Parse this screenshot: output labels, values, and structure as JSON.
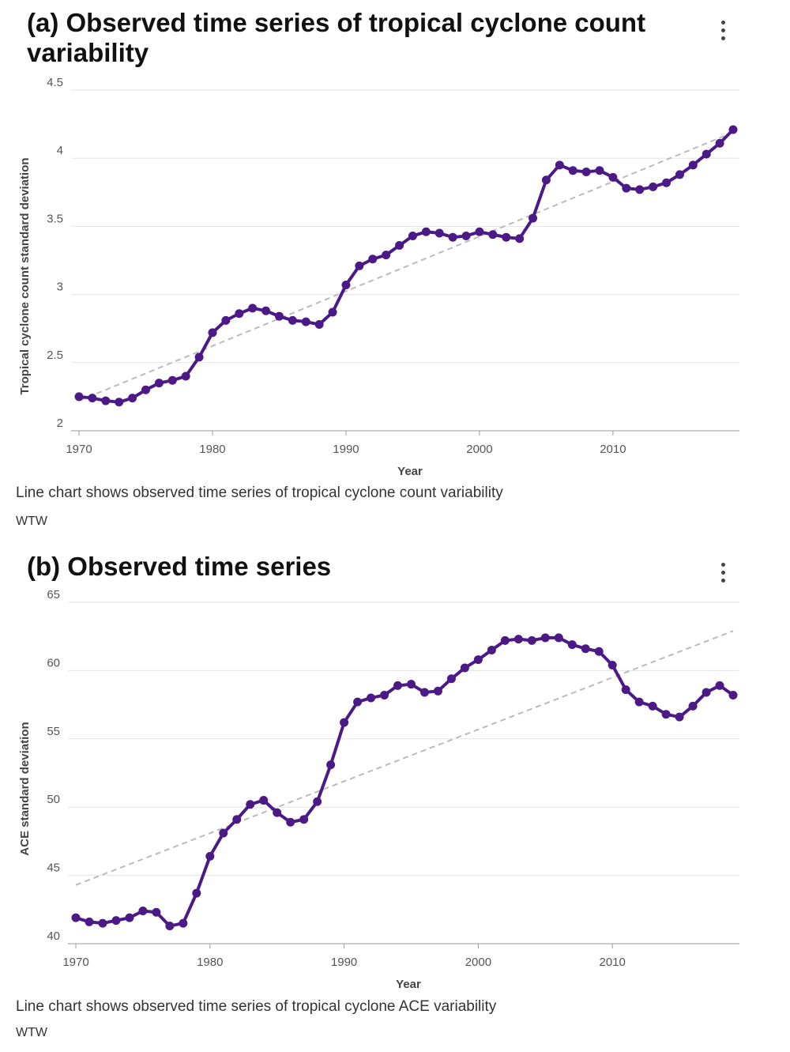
{
  "chart_data": [
    {
      "type": "line",
      "title": "(a) Observed time series of tropical cyclone count variability",
      "xlabel": "Year",
      "ylabel": "Tropical cyclone count standard deviation",
      "xlim": [
        1970,
        2019
      ],
      "ylim": [
        2,
        4.5
      ],
      "xticks": [
        1970,
        1980,
        1990,
        2000,
        2010
      ],
      "yticks": [
        2,
        2.5,
        3,
        3.5,
        4,
        4.5
      ],
      "ytick_labels": [
        "2",
        "2.5",
        "3",
        "3.5",
        "4",
        "4.5"
      ],
      "grid": true,
      "series": [
        {
          "name": "Observed",
          "color": "#4b1a87",
          "x": [
            1970,
            1971,
            1972,
            1973,
            1974,
            1975,
            1976,
            1977,
            1978,
            1979,
            1980,
            1981,
            1982,
            1983,
            1984,
            1985,
            1986,
            1987,
            1988,
            1989,
            1990,
            1991,
            1992,
            1993,
            1994,
            1995,
            1996,
            1997,
            1998,
            1999,
            2000,
            2001,
            2002,
            2003,
            2004,
            2005,
            2006,
            2007,
            2008,
            2009,
            2010,
            2011,
            2012,
            2013,
            2014,
            2015,
            2016,
            2017,
            2018,
            2019
          ],
          "values": [
            2.25,
            2.24,
            2.22,
            2.21,
            2.24,
            2.3,
            2.35,
            2.37,
            2.4,
            2.54,
            2.72,
            2.81,
            2.86,
            2.9,
            2.88,
            2.84,
            2.81,
            2.8,
            2.78,
            2.87,
            3.07,
            3.21,
            3.26,
            3.29,
            3.36,
            3.43,
            3.46,
            3.45,
            3.42,
            3.43,
            3.46,
            3.44,
            3.42,
            3.41,
            3.56,
            3.84,
            3.95,
            3.91,
            3.9,
            3.91,
            3.86,
            3.78,
            3.77,
            3.79,
            3.82,
            3.88,
            3.95,
            4.03,
            4.11,
            4.21
          ]
        },
        {
          "name": "Trend",
          "style": "dashed",
          "color": "#bbbbbb",
          "x": [
            1970,
            2019
          ],
          "values": [
            2.22,
            4.19
          ]
        }
      ],
      "caption": "Line chart shows observed time series of tropical cyclone count variability",
      "source": "WTW"
    },
    {
      "type": "line",
      "title": "(b) Observed time series",
      "xlabel": "Year",
      "ylabel": "ACE standard deviation",
      "xlim": [
        1970,
        2019
      ],
      "ylim": [
        40,
        65
      ],
      "xticks": [
        1970,
        1980,
        1990,
        2000,
        2010
      ],
      "yticks": [
        40,
        45,
        50,
        55,
        60,
        65
      ],
      "ytick_labels": [
        "40",
        "45",
        "50",
        "55",
        "60",
        "65"
      ],
      "grid": true,
      "series": [
        {
          "name": "Observed",
          "color": "#4b1a87",
          "x": [
            1970,
            1971,
            1972,
            1973,
            1974,
            1975,
            1976,
            1977,
            1978,
            1979,
            1980,
            1981,
            1982,
            1983,
            1984,
            1985,
            1986,
            1987,
            1988,
            1989,
            1990,
            1991,
            1992,
            1993,
            1994,
            1995,
            1996,
            1997,
            1998,
            1999,
            2000,
            2001,
            2002,
            2003,
            2004,
            2005,
            2006,
            2007,
            2008,
            2009,
            2010,
            2011,
            2012,
            2013,
            2014,
            2015,
            2016,
            2017,
            2018,
            2019
          ],
          "values": [
            41.9,
            41.6,
            41.5,
            41.7,
            41.9,
            42.4,
            42.3,
            41.3,
            41.5,
            43.7,
            46.4,
            48.1,
            49.1,
            50.2,
            50.5,
            49.6,
            48.9,
            49.1,
            50.4,
            53.1,
            56.2,
            57.7,
            58.0,
            58.2,
            58.9,
            59.0,
            58.4,
            58.5,
            59.4,
            60.2,
            60.8,
            61.5,
            62.2,
            62.3,
            62.2,
            62.4,
            62.4,
            61.9,
            61.6,
            61.4,
            60.4,
            58.6,
            57.7,
            57.4,
            56.8,
            56.6,
            57.4,
            58.4,
            58.9,
            58.2
          ]
        },
        {
          "name": "Trend",
          "style": "dashed",
          "color": "#bbbbbb",
          "x": [
            1970,
            2019
          ],
          "values": [
            44.3,
            62.9
          ]
        }
      ],
      "caption": "Line chart shows observed time series of tropical cyclone ACE variability",
      "source": "WTW"
    }
  ]
}
